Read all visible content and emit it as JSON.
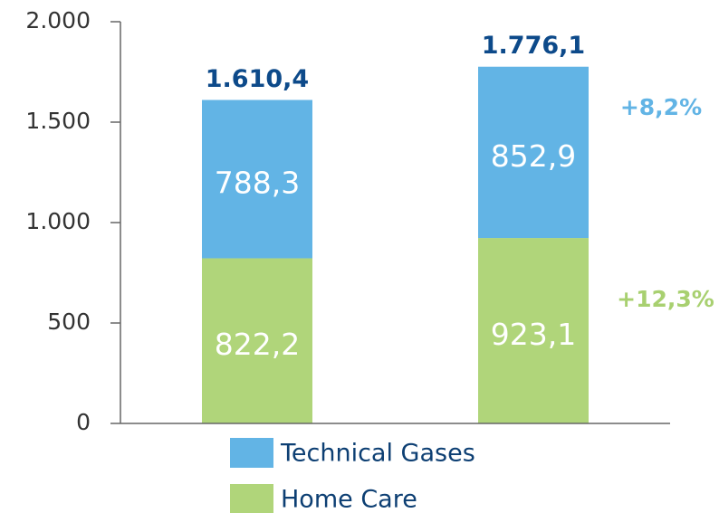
{
  "chart_data": {
    "type": "bar",
    "stacked": true,
    "categories": [
      null,
      null
    ],
    "series": [
      {
        "name": "Home Care",
        "color": "#b0d57a",
        "values": [
          822.2,
          923.1
        ],
        "value_labels": [
          "822,2",
          "923,1"
        ]
      },
      {
        "name": "Technical Gases",
        "color": "#62b4e5",
        "values": [
          788.3,
          852.9
        ],
        "value_labels": [
          "788,3",
          "852,9"
        ]
      }
    ],
    "totals": {
      "values": [
        1610.4,
        1776.1
      ],
      "labels": [
        "1.610,4",
        "1.776,1"
      ],
      "color": "#0d4a8a"
    },
    "annotations": [
      {
        "text": "+8,2%",
        "color": "#62b4e5"
      },
      {
        "text": "+12,3%",
        "color": "#a8d070"
      }
    ],
    "ylim": [
      0,
      2000
    ],
    "yticks": [
      0,
      500,
      {
        "value": 1000,
        "label": "1.000"
      },
      {
        "value": 1500,
        "label": "1.500"
      },
      {
        "value": 2000,
        "label": "2.000"
      }
    ]
  }
}
